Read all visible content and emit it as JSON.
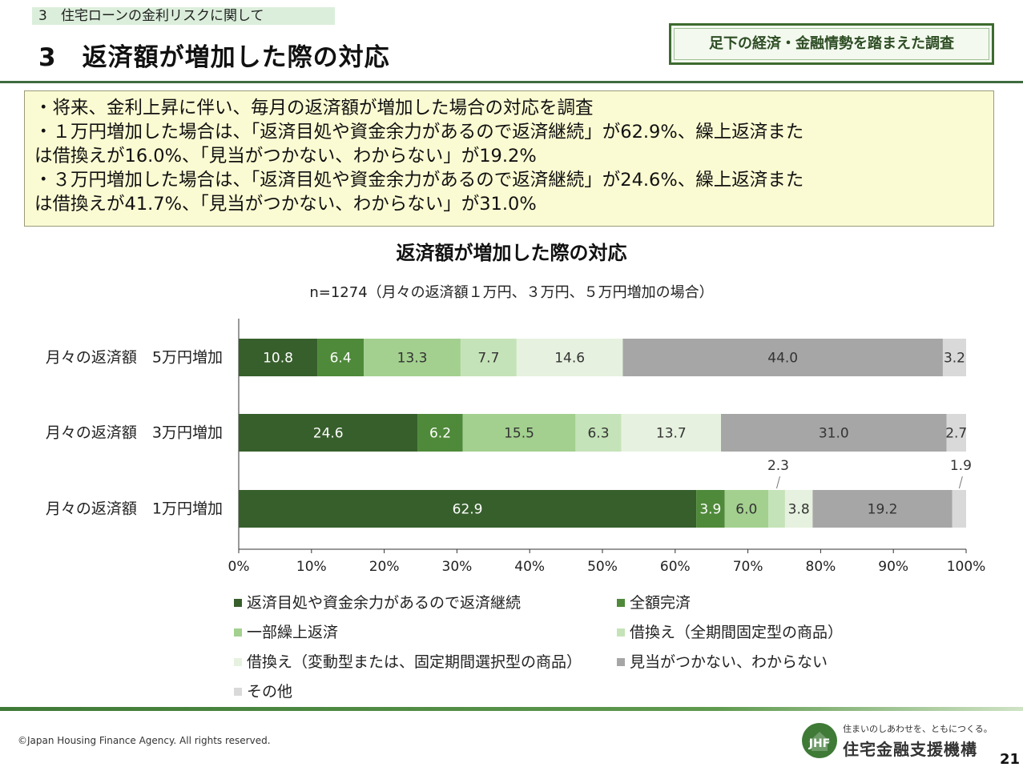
{
  "header": {
    "section_tag": "3　住宅ローンの金利リスクに関して",
    "page_title": "3　返済額が増加した際の対応",
    "badge": "足下の経済・金融情勢を踏まえた調査"
  },
  "summary": {
    "lines": [
      "・将来、金利上昇に伴い、毎月の返済額が増加した場合の対応を調査",
      "・１万円増加した場合は、「返済目処や資金余力があるので返済継続」が62.9%、繰上返済また",
      "は借換えが16.0%、「見当がつかない、わからない」が19.2%",
      "・３万円増加した場合は、「返済目処や資金余力があるので返済継続」が24.6%、繰上返済また",
      "は借換えが41.7%、「見当がつかない、わからない」が31.0%"
    ]
  },
  "chart_data": {
    "type": "bar",
    "orientation": "horizontal",
    "stacked": true,
    "title": "返済額が増加した際の対応",
    "subtitle": "n=1274（月々の返済額１万円、３万円、５万円増加の場合）",
    "categories": [
      "月々の返済額　5万円増加",
      "月々の返済額　3万円増加",
      "月々の返済額　1万円増加"
    ],
    "series": [
      {
        "name": "返済目処や資金余力があるので返済継続",
        "color": "#375f2c",
        "values": [
          10.8,
          24.6,
          62.9
        ],
        "labels": [
          "10.8",
          "24.6",
          "62.9"
        ]
      },
      {
        "name": "全額完済",
        "color": "#4f8a3a",
        "values": [
          6.4,
          6.2,
          3.9
        ],
        "labels": [
          "6.4",
          "6.2",
          "3.9"
        ]
      },
      {
        "name": "一部繰上返済",
        "color": "#a3d08f",
        "values": [
          13.3,
          15.5,
          6.0
        ],
        "labels": [
          "13.3",
          "15.5",
          "6.0"
        ]
      },
      {
        "name": "借換え（全期間固定型の商品）",
        "color": "#c5e3b8",
        "values": [
          7.7,
          6.3,
          2.3
        ],
        "labels": [
          "7.7",
          "6.3",
          "2.3"
        ]
      },
      {
        "name": "借換え（変動型または、固定期間選択型の商品）",
        "color": "#e6f2df",
        "values": [
          14.6,
          13.7,
          3.8
        ],
        "labels": [
          "14.6",
          "13.7",
          "3.8"
        ]
      },
      {
        "name": "見当がつかない、わからない",
        "color": "#a6a6a6",
        "values": [
          44.0,
          31.0,
          19.2
        ],
        "labels": [
          "44.0",
          "31.0",
          "19.2"
        ]
      },
      {
        "name": "その他",
        "color": "#d9d9d9",
        "values": [
          3.2,
          2.7,
          1.9
        ],
        "labels": [
          "3.2",
          "2.7",
          "1.9"
        ]
      }
    ],
    "x_ticks": [
      "0%",
      "10%",
      "20%",
      "30%",
      "40%",
      "50%",
      "60%",
      "70%",
      "80%",
      "90%",
      "100%"
    ],
    "xlim": [
      0,
      100
    ],
    "grid": false,
    "legend_position": "bottom"
  },
  "footer": {
    "copyright": "©Japan Housing Finance Agency. All rights reserved.",
    "logo_tagline": "住まいのしあわせを、ともにつくる。",
    "logo_name": "住宅金融支援機構",
    "logo_mark": "JHF",
    "page_number": "21"
  }
}
